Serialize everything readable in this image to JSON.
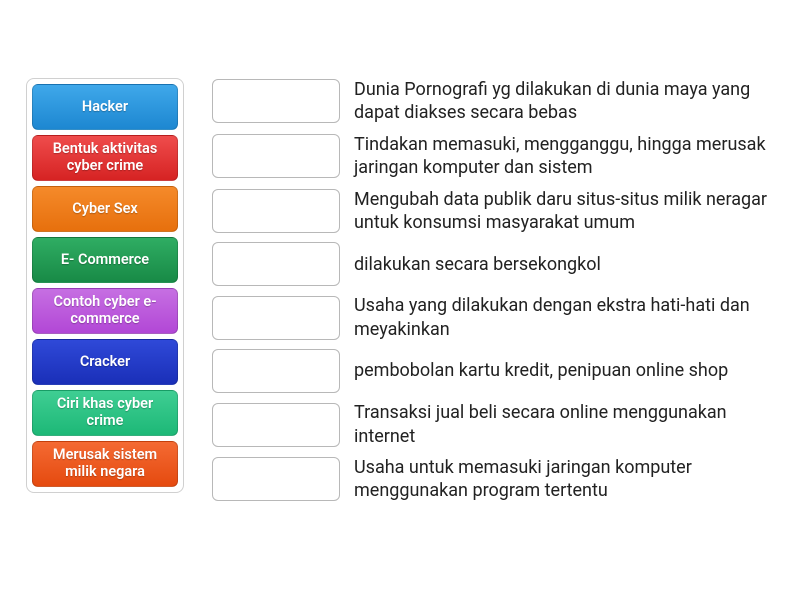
{
  "terms": [
    {
      "label": "Hacker",
      "bg": "linear-gradient(to bottom, #3fa8ea 0%, #1d87d1 100%)"
    },
    {
      "label": "Bentuk aktivitas cyber crime",
      "bg": "linear-gradient(to bottom, #ef4c4c 0%, #d62323 100%)"
    },
    {
      "label": "Cyber Sex",
      "bg": "linear-gradient(to bottom, #f58a2a 0%, #e7700d 100%)"
    },
    {
      "label": "E- Commerce",
      "bg": "linear-gradient(to bottom, #2fad63 0%, #188a46 100%)"
    },
    {
      "label": "Contoh cyber e-commerce",
      "bg": "linear-gradient(to bottom, #c66fe2 0%, #b247d6 100%)"
    },
    {
      "label": "Cracker",
      "bg": "linear-gradient(to bottom, #2f49d8 0%, #1a2fb8 100%)"
    },
    {
      "label": "Ciri khas cyber crime",
      "bg": "linear-gradient(to bottom, #3fce93 0%, #1db877 100%)"
    },
    {
      "label": "Merusak sistem milik negara",
      "bg": "linear-gradient(to bottom, #f46a33 0%, #e54a0f 100%)"
    }
  ],
  "definitions": [
    "Dunia Pornografi yg dilakukan di dunia maya yang dapat diakses secara bebas",
    "Tindakan memasuki, mengganggu, hingga merusak jaringan komputer dan sistem",
    "Mengubah data publik daru situs-situs milik neragar untuk konsumsi masyarakat umum",
    "dilakukan secara bersekongkol",
    "Usaha yang dilakukan dengan ekstra hati-hati dan meyakinkan",
    "pembobolan kartu kredit, penipuan online shop",
    "Transaksi jual beli secara online menggunakan internet",
    "Usaha untuk memasuki jaringan komputer menggunakan program tertentu"
  ],
  "layout": {
    "term_panel_border": "#d0d0d0",
    "slot_border": "#b8b8b8",
    "definition_fontsize": 18,
    "term_fontsize": 14.5
  }
}
